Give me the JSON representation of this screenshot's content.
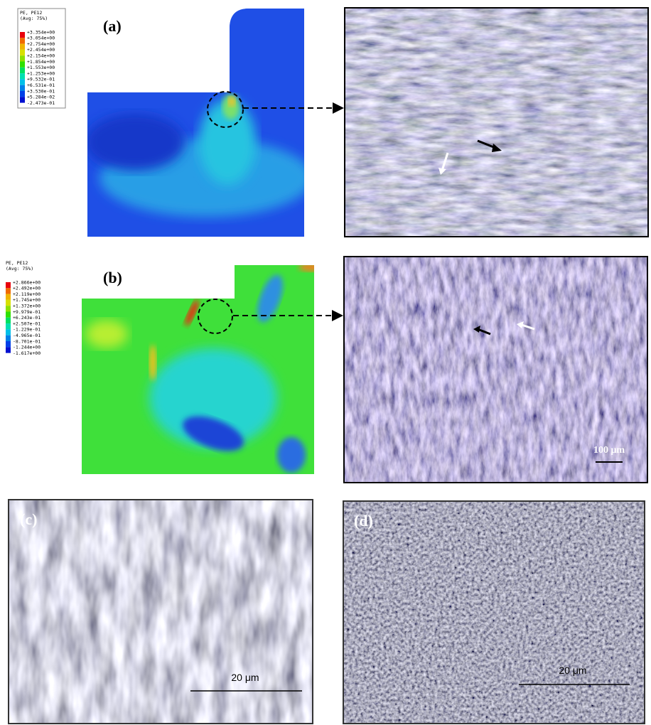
{
  "panels": [
    {
      "label": "(a)",
      "legend": {
        "title": "PE, PE12",
        "subtitle": "(Avg: 75%)",
        "values": [
          "+3.354e+00",
          "+3.054e+00",
          "+2.754e+00",
          "+2.454e+00",
          "+2.154e+00",
          "+1.854e+00",
          "+1.553e+00",
          "+1.253e+00",
          "+9.532e-01",
          "+6.531e-01",
          "+3.530e-01",
          "+5.284e-02",
          "-2.473e-01"
        ]
      }
    },
    {
      "label": "(b)",
      "legend": {
        "title": "PE, PE12",
        "subtitle": "(Avg: 75%)",
        "values": [
          "+2.866e+00",
          "+2.492e+00",
          "+2.119e+00",
          "+1.745e+00",
          "+1.372e+00",
          "+9.979e-01",
          "+6.243e-01",
          "+2.507e-01",
          "-1.229e-01",
          "-4.965e-01",
          "-8.701e-01",
          "-1.244e+00",
          "-1.617e+00"
        ]
      },
      "scale_bar": "100 μm"
    },
    {
      "label": "(c)",
      "scale_bar": "20 μm"
    },
    {
      "label": "(d)",
      "scale_bar": "20 μm"
    }
  ]
}
